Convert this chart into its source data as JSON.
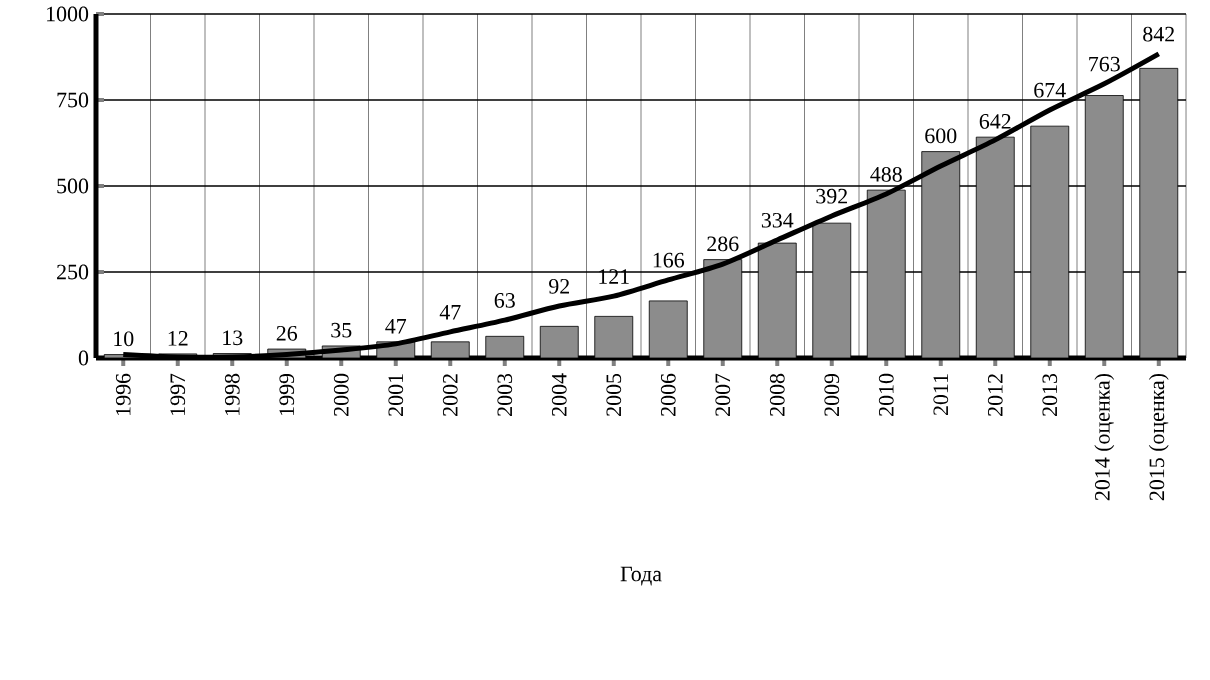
{
  "chart_data": {
    "type": "bar",
    "xlabel": "Года",
    "categories": [
      "1996",
      "1997",
      "1998",
      "1999",
      "2000",
      "2001",
      "2002",
      "2003",
      "2004",
      "2005",
      "2006",
      "2007",
      "2008",
      "2009",
      "2010",
      "2011",
      "2012",
      "2013",
      "2014 (оценка)",
      "2015 (оценка)"
    ],
    "series": [
      {
        "color": "#8c8c8c",
        "values": [
          10,
          12,
          13,
          26,
          35,
          47,
          47,
          63,
          92,
          121,
          166,
          286,
          334,
          392,
          488,
          600,
          642,
          674,
          763,
          842
        ],
        "value_labels": [
          "10",
          "12",
          "13",
          "26",
          "35",
          "47",
          "47",
          "63",
          "92",
          "121",
          "166",
          "286",
          "334",
          "392",
          "488",
          "600",
          "642",
          "674",
          "763",
          "842"
        ]
      },
      {
        "type": "line",
        "color": "#000000",
        "values": [
          10,
          3,
          3,
          10,
          23,
          41,
          76,
          110,
          151,
          180,
          227,
          273,
          343,
          413,
          477,
          558,
          634,
          721,
          797,
          884
        ]
      }
    ],
    "ylim": [
      0,
      1000
    ],
    "yticks": [
      0,
      250,
      500,
      750,
      1000
    ],
    "grid": true
  }
}
